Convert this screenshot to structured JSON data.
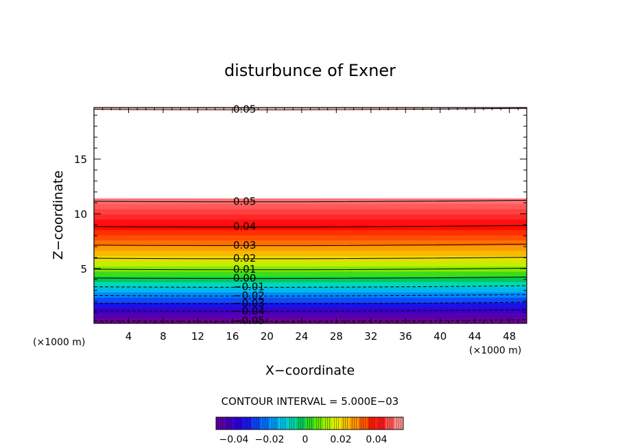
{
  "chart_data": {
    "type": "contour",
    "title": "disturbunce of Exner",
    "xlabel": "X−coordinate",
    "ylabel": "Z−coordinate",
    "x_unit_left": "(×1000 m)",
    "x_unit_right": "(×1000 m)",
    "xlim": [
      0,
      50
    ],
    "ylim": [
      0,
      19.7
    ],
    "x_ticks": [
      4,
      8,
      12,
      16,
      20,
      24,
      28,
      32,
      36,
      40,
      44,
      48
    ],
    "y_ticks": [
      5,
      10,
      15
    ],
    "contour_interval_text": "CONTOUR INTERVAL = 5.000E−03",
    "contour_interval": 0.005,
    "value_range": [
      -0.05,
      0.055
    ],
    "contour_labels": [
      {
        "text": "0.05",
        "level": 0.05,
        "z": 19.6
      },
      {
        "text": "0.05",
        "level": 0.05,
        "z": 11.2
      },
      {
        "text": "0.04",
        "level": 0.04,
        "z": 8.9
      },
      {
        "text": "0.03",
        "level": 0.03,
        "z": 7.2
      },
      {
        "text": "0.02",
        "level": 0.02,
        "z": 6.0
      },
      {
        "text": "0.01",
        "level": 0.01,
        "z": 5.0
      },
      {
        "text": "0.00",
        "level": 0.0,
        "z": 4.2
      },
      {
        "text": "−0.01",
        "level": -0.01,
        "z": 3.4
      },
      {
        "text": "−0.02",
        "level": -0.02,
        "z": 2.6
      },
      {
        "text": "−0.03",
        "level": -0.03,
        "z": 1.9
      },
      {
        "text": "−0.04",
        "level": -0.04,
        "z": 1.2
      },
      {
        "text": "−0.05",
        "level": -0.05,
        "z": 0.3
      }
    ],
    "colorbar": {
      "ticks": [
        {
          "label": "−0.04",
          "value": -0.04
        },
        {
          "label": "−0.02",
          "value": -0.02
        },
        {
          "label": "0",
          "value": 0.0
        },
        {
          "label": "0.02",
          "value": 0.02
        },
        {
          "label": "0.04",
          "value": 0.04
        }
      ],
      "range": [
        -0.05,
        0.055
      ]
    }
  }
}
